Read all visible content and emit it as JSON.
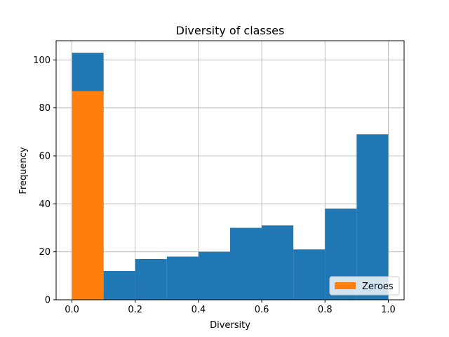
{
  "chart_data": {
    "type": "bar",
    "title": "Diversity of classes",
    "xlabel": "Diversity",
    "ylabel": "Frequency",
    "xlim": [
      -0.05,
      1.05
    ],
    "ylim": [
      0,
      108
    ],
    "x_ticks": [
      "0.0",
      "0.2",
      "0.4",
      "0.6",
      "0.8",
      "1.0"
    ],
    "x_tick_values": [
      0.0,
      0.2,
      0.4,
      0.6,
      0.8,
      1.0
    ],
    "y_ticks": [
      "0",
      "20",
      "40",
      "60",
      "80",
      "100"
    ],
    "y_tick_values": [
      0,
      20,
      40,
      60,
      80,
      100
    ],
    "grid": true,
    "legend": {
      "placement": "lower-right"
    },
    "series": [
      {
        "name": "",
        "color": "#1f77b4",
        "bins": [
          {
            "x0": 0.0,
            "x1": 0.1,
            "value": 103
          },
          {
            "x0": 0.1,
            "x1": 0.2,
            "value": 12
          },
          {
            "x0": 0.2,
            "x1": 0.3,
            "value": 17
          },
          {
            "x0": 0.3,
            "x1": 0.4,
            "value": 18
          },
          {
            "x0": 0.4,
            "x1": 0.5,
            "value": 20
          },
          {
            "x0": 0.5,
            "x1": 0.6,
            "value": 30
          },
          {
            "x0": 0.6,
            "x1": 0.7,
            "value": 31
          },
          {
            "x0": 0.7,
            "x1": 0.8,
            "value": 21
          },
          {
            "x0": 0.8,
            "x1": 0.9,
            "value": 38
          },
          {
            "x0": 0.9,
            "x1": 1.0,
            "value": 69
          }
        ]
      },
      {
        "name": "Zeroes",
        "color": "#ff7f0e",
        "bins": [
          {
            "x0": 0.0,
            "x1": 0.1,
            "value": 87
          }
        ]
      }
    ]
  }
}
